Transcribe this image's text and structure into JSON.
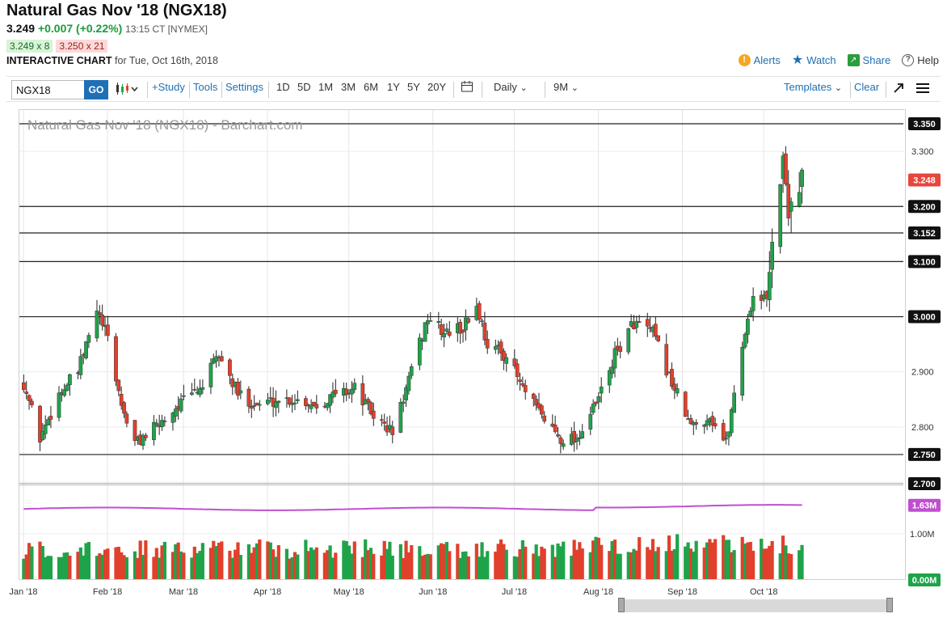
{
  "header": {
    "title": "Natural Gas Nov '18 (NGX18)",
    "last": "3.249",
    "change": "+0.007 (+0.22%)",
    "time": "13:15 CT [NYMEX]",
    "bid": "3.249 x 8",
    "ask": "3.250 x 21",
    "interactive_label": "INTERACTIVE CHART",
    "for_date": "for Tue, Oct 16th, 2018"
  },
  "actions": {
    "alerts": "Alerts",
    "watch": "Watch",
    "share": "Share",
    "help": "Help"
  },
  "toolbar": {
    "symbol": "NGX18",
    "go": "GO",
    "study": "+Study",
    "tools": "Tools",
    "settings": "Settings",
    "ranges": [
      "1D",
      "5D",
      "1M",
      "3M",
      "6M",
      "1Y",
      "5Y",
      "20Y"
    ],
    "interval": "Daily",
    "period": "9M",
    "templates": "Templates",
    "clear": "Clear"
  },
  "colors": {
    "up": "#1fa34a",
    "down": "#e0402c",
    "ma": "#c04fd0",
    "accent": "#1f6fb5",
    "last_price": "#e8453c"
  },
  "chart_data": {
    "type": "candlestick",
    "title": "Natural Gas Nov '18 (NGX18) - Barchart.com",
    "x_labels": [
      "Jan '18",
      "Feb '18",
      "Mar '18",
      "Apr '18",
      "May '18",
      "Jun '18",
      "Jul '18",
      "Aug '18",
      "Sep '18",
      "Oct '18"
    ],
    "y_ticks": [
      3.3,
      3.2,
      3.1,
      3.0,
      2.9,
      2.8,
      2.7
    ],
    "y_tick_labels": [
      "3.300",
      "3.200",
      "3.100",
      "3.000",
      "2.900",
      "2.800",
      "2.700"
    ],
    "ylim": [
      2.7,
      3.375
    ],
    "horizontal_lines": [
      3.35,
      3.2,
      3.152,
      3.1,
      3.0,
      2.75
    ],
    "horizontal_line_labels": [
      "3.350",
      "3.200",
      "3.152",
      "3.100",
      "3.000",
      "2.750"
    ],
    "last_price": 3.248,
    "last_price_label": "3.248",
    "close_anchors": [
      [
        "2018-01-02",
        2.88
      ],
      [
        "2018-01-08",
        2.78
      ],
      [
        "2018-01-15",
        2.86
      ],
      [
        "2018-01-22",
        2.9
      ],
      [
        "2018-01-29",
        3.01
      ],
      [
        "2018-02-02",
        2.96
      ],
      [
        "2018-02-07",
        2.84
      ],
      [
        "2018-02-12",
        2.77
      ],
      [
        "2018-02-20",
        2.8
      ],
      [
        "2018-02-28",
        2.84
      ],
      [
        "2018-03-08",
        2.87
      ],
      [
        "2018-03-15",
        2.93
      ],
      [
        "2018-03-22",
        2.86
      ],
      [
        "2018-03-29",
        2.84
      ],
      [
        "2018-04-06",
        2.85
      ],
      [
        "2018-04-13",
        2.85
      ],
      [
        "2018-04-20",
        2.84
      ],
      [
        "2018-04-27",
        2.86
      ],
      [
        "2018-05-04",
        2.87
      ],
      [
        "2018-05-11",
        2.82
      ],
      [
        "2018-05-18",
        2.79
      ],
      [
        "2018-05-25",
        2.9
      ],
      [
        "2018-05-31",
        3.0
      ],
      [
        "2018-06-06",
        2.97
      ],
      [
        "2018-06-13",
        2.98
      ],
      [
        "2018-06-18",
        3.02
      ],
      [
        "2018-06-22",
        2.95
      ],
      [
        "2018-06-29",
        2.93
      ],
      [
        "2018-07-06",
        2.86
      ],
      [
        "2018-07-12",
        2.82
      ],
      [
        "2018-07-19",
        2.78
      ],
      [
        "2018-07-25",
        2.78
      ],
      [
        "2018-08-01",
        2.84
      ],
      [
        "2018-08-08",
        2.93
      ],
      [
        "2018-08-15",
        2.99
      ],
      [
        "2018-08-22",
        2.97
      ],
      [
        "2018-08-29",
        2.88
      ],
      [
        "2018-09-05",
        2.8
      ],
      [
        "2018-09-12",
        2.82
      ],
      [
        "2018-09-18",
        2.77
      ],
      [
        "2018-09-24",
        2.95
      ],
      [
        "2018-09-28",
        3.04
      ],
      [
        "2018-10-03",
        3.03
      ],
      [
        "2018-10-05",
        3.15
      ],
      [
        "2018-10-09",
        3.28
      ],
      [
        "2018-10-11",
        3.2
      ],
      [
        "2018-10-15",
        3.24
      ],
      [
        "2018-10-16",
        3.25
      ]
    ],
    "volume": {
      "labels": [
        "1.63M",
        "1.00M",
        "0.00M"
      ],
      "ma_label": "1.63M"
    }
  }
}
